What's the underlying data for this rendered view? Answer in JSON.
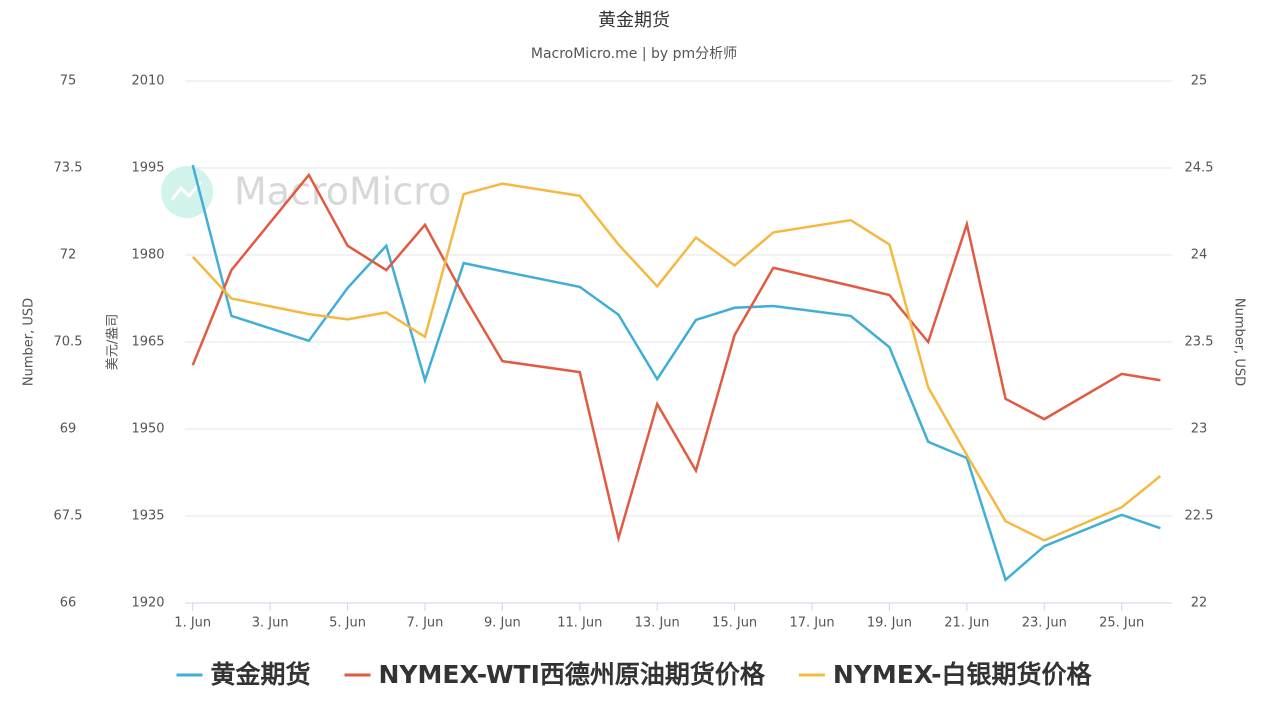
{
  "chart_data": {
    "type": "line",
    "title": "黄金期货",
    "subtitle": "MacroMicro.me | by pm分析师",
    "watermark": "MacroMicro",
    "ylabel": "Number, USD",
    "y2label": "Number, USD",
    "y3label": "美元/盎司",
    "x": [
      1,
      2,
      4,
      5,
      6,
      7,
      8,
      9,
      11,
      12,
      13,
      14,
      15,
      16,
      18,
      19,
      20,
      21,
      22,
      23,
      25,
      26
    ],
    "xlim": [
      0.8,
      26.3
    ],
    "xticks": [
      {
        "value": 1,
        "label": "1. Jun"
      },
      {
        "value": 3,
        "label": "3. Jun"
      },
      {
        "value": 5,
        "label": "5. Jun"
      },
      {
        "value": 7,
        "label": "7. Jun"
      },
      {
        "value": 9,
        "label": "9. Jun"
      },
      {
        "value": 11,
        "label": "11. Jun"
      },
      {
        "value": 13,
        "label": "13. Jun"
      },
      {
        "value": 15,
        "label": "15. Jun"
      },
      {
        "value": 17,
        "label": "17. Jun"
      },
      {
        "value": 19,
        "label": "19. Jun"
      },
      {
        "value": 21,
        "label": "21. Jun"
      },
      {
        "value": 23,
        "label": "23. Jun"
      },
      {
        "value": 25,
        "label": "25. Jun"
      }
    ],
    "ylim": [
      66,
      75
    ],
    "yticks": [
      66,
      67.5,
      69,
      70.5,
      72,
      73.5,
      75
    ],
    "y2lim": [
      22,
      25
    ],
    "y2ticks": [
      22,
      22.5,
      23,
      23.5,
      24,
      24.5,
      25
    ],
    "y3lim": [
      1920,
      2010
    ],
    "y3ticks": [
      1920,
      1935,
      1950,
      1965,
      1980,
      1995,
      2010
    ],
    "grid": true,
    "legend": "bottom",
    "series": [
      {
        "name": "黄金期货",
        "color": "#41aed8",
        "axis": "y3",
        "values": [
          1995.5,
          1969.5,
          1965.2,
          1974.3,
          1981.6,
          1958.4,
          1978.6,
          1977.2,
          1974.5,
          1969.7,
          1958.6,
          1968.8,
          1970.9,
          1971.2,
          1969.5,
          1964.1,
          1947.8,
          1945,
          1924,
          1929.8,
          1935.2,
          1932.9
        ]
      },
      {
        "name": "NYMEX-WTI西德州原油期货价格",
        "color": "#e25a41",
        "axis": "y",
        "values": [
          70.1,
          71.74,
          73.38,
          72.16,
          71.74,
          72.52,
          71.3,
          70.17,
          69.98,
          67.12,
          69.43,
          68.28,
          70.62,
          71.78,
          71.47,
          71.31,
          70.5,
          72.53,
          69.52,
          69.17,
          69.95,
          69.84
        ]
      },
      {
        "name": "NYMEX-白银期货价格",
        "color": "#f5b942",
        "axis": "y2",
        "values": [
          23.99,
          23.75,
          23.66,
          23.63,
          23.67,
          23.53,
          24.35,
          24.41,
          24.34,
          24.06,
          23.82,
          24.1,
          23.94,
          24.13,
          24.2,
          24.06,
          23.24,
          22.85,
          22.47,
          22.36,
          22.55,
          22.73
        ]
      }
    ]
  }
}
